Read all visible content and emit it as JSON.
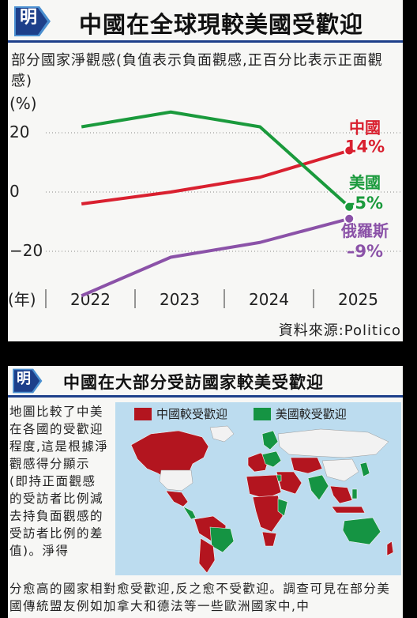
{
  "colors": {
    "china": "#d9202f",
    "usa": "#1a9a3c",
    "russia": "#8b52a8",
    "header_blue": "#1d3f8a",
    "badge_blue": "#4a8fd0",
    "china_map": "#b3151f",
    "usa_map": "#159443",
    "ocean": "#bcdcef"
  },
  "panel1": {
    "badge": "明",
    "title": "中國在全球現較美國受歡迎",
    "subtitle": "部分國家淨觀感(負值表示負面觀感,正百分比表示正面觀感)",
    "source": "資料來源:Politico"
  },
  "chart_data": {
    "type": "line",
    "ylabel": "(%)",
    "xlabel": "(年)",
    "x_ticks": [
      "2022",
      "2023",
      "2024",
      "2025"
    ],
    "y_ticks": [
      20,
      0,
      -20
    ],
    "ylim": [
      -36,
      28
    ],
    "grid": "dotted horizontal",
    "x": [
      2021.9,
      2022.9,
      2023.9,
      2024.9
    ],
    "series": [
      {
        "name": "中國",
        "end_label": "14%",
        "color_key": "china",
        "values": [
          -4,
          0,
          5,
          14
        ]
      },
      {
        "name": "美國",
        "end_label": "-5%",
        "color_key": "usa",
        "values": [
          22,
          27,
          22,
          -5
        ]
      },
      {
        "name": "俄羅斯",
        "end_label": "-9%",
        "color_key": "russia",
        "values": [
          -35,
          -22,
          -17,
          -9
        ]
      }
    ]
  },
  "panel2": {
    "badge": "明",
    "title": "中國在大部分受訪國家較美受歡迎",
    "legend": [
      "中國較受歡迎",
      "美國較受歡迎"
    ],
    "paragraph_left": "地圖比較了中美在各國的受歡迎程度,這是根據淨觀感得分顯示(即持正面觀感的受訪者比例減去持負面觀感的受訪者比例的差值)。淨得",
    "paragraph_bottom": "分愈高的國家相對愈受歡迎,反之愈不受歡迎。調查可見在部分美國傳統盟友例如加拿大和德法等一些歐洲國家中,中"
  }
}
